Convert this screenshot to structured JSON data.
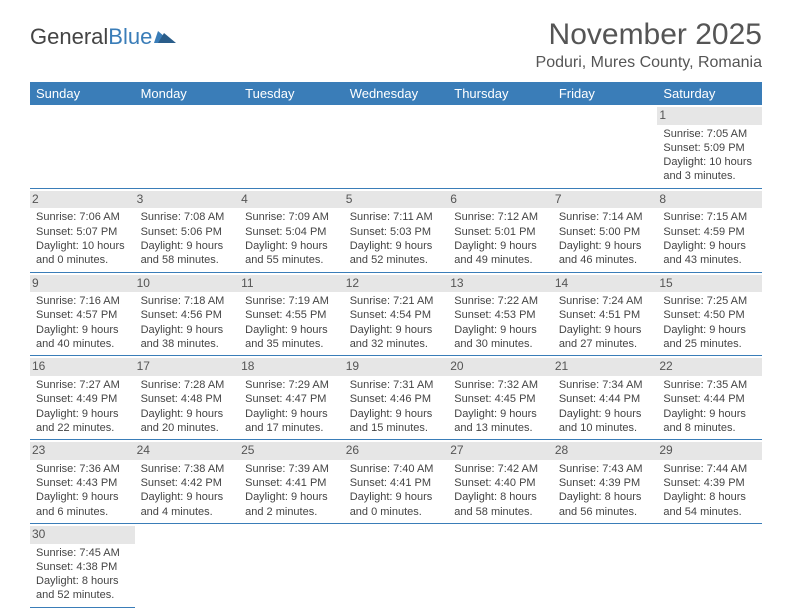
{
  "logo": {
    "general": "General",
    "blue": "Blue"
  },
  "title": "November 2025",
  "location": "Poduri, Mures County, Romania",
  "colors": {
    "header_bg": "#3a7db8",
    "header_text": "#ffffff",
    "daynum_bg": "#e6e6e6",
    "border": "#3a7db8",
    "text": "#444444",
    "logo_blue": "#3a7db8"
  },
  "weekdays": [
    "Sunday",
    "Monday",
    "Tuesday",
    "Wednesday",
    "Thursday",
    "Friday",
    "Saturday"
  ],
  "weeks": [
    [
      null,
      null,
      null,
      null,
      null,
      null,
      {
        "n": "1",
        "sunrise": "Sunrise: 7:05 AM",
        "sunset": "Sunset: 5:09 PM",
        "day1": "Daylight: 10 hours",
        "day2": "and 3 minutes."
      }
    ],
    [
      {
        "n": "2",
        "sunrise": "Sunrise: 7:06 AM",
        "sunset": "Sunset: 5:07 PM",
        "day1": "Daylight: 10 hours",
        "day2": "and 0 minutes."
      },
      {
        "n": "3",
        "sunrise": "Sunrise: 7:08 AM",
        "sunset": "Sunset: 5:06 PM",
        "day1": "Daylight: 9 hours",
        "day2": "and 58 minutes."
      },
      {
        "n": "4",
        "sunrise": "Sunrise: 7:09 AM",
        "sunset": "Sunset: 5:04 PM",
        "day1": "Daylight: 9 hours",
        "day2": "and 55 minutes."
      },
      {
        "n": "5",
        "sunrise": "Sunrise: 7:11 AM",
        "sunset": "Sunset: 5:03 PM",
        "day1": "Daylight: 9 hours",
        "day2": "and 52 minutes."
      },
      {
        "n": "6",
        "sunrise": "Sunrise: 7:12 AM",
        "sunset": "Sunset: 5:01 PM",
        "day1": "Daylight: 9 hours",
        "day2": "and 49 minutes."
      },
      {
        "n": "7",
        "sunrise": "Sunrise: 7:14 AM",
        "sunset": "Sunset: 5:00 PM",
        "day1": "Daylight: 9 hours",
        "day2": "and 46 minutes."
      },
      {
        "n": "8",
        "sunrise": "Sunrise: 7:15 AM",
        "sunset": "Sunset: 4:59 PM",
        "day1": "Daylight: 9 hours",
        "day2": "and 43 minutes."
      }
    ],
    [
      {
        "n": "9",
        "sunrise": "Sunrise: 7:16 AM",
        "sunset": "Sunset: 4:57 PM",
        "day1": "Daylight: 9 hours",
        "day2": "and 40 minutes."
      },
      {
        "n": "10",
        "sunrise": "Sunrise: 7:18 AM",
        "sunset": "Sunset: 4:56 PM",
        "day1": "Daylight: 9 hours",
        "day2": "and 38 minutes."
      },
      {
        "n": "11",
        "sunrise": "Sunrise: 7:19 AM",
        "sunset": "Sunset: 4:55 PM",
        "day1": "Daylight: 9 hours",
        "day2": "and 35 minutes."
      },
      {
        "n": "12",
        "sunrise": "Sunrise: 7:21 AM",
        "sunset": "Sunset: 4:54 PM",
        "day1": "Daylight: 9 hours",
        "day2": "and 32 minutes."
      },
      {
        "n": "13",
        "sunrise": "Sunrise: 7:22 AM",
        "sunset": "Sunset: 4:53 PM",
        "day1": "Daylight: 9 hours",
        "day2": "and 30 minutes."
      },
      {
        "n": "14",
        "sunrise": "Sunrise: 7:24 AM",
        "sunset": "Sunset: 4:51 PM",
        "day1": "Daylight: 9 hours",
        "day2": "and 27 minutes."
      },
      {
        "n": "15",
        "sunrise": "Sunrise: 7:25 AM",
        "sunset": "Sunset: 4:50 PM",
        "day1": "Daylight: 9 hours",
        "day2": "and 25 minutes."
      }
    ],
    [
      {
        "n": "16",
        "sunrise": "Sunrise: 7:27 AM",
        "sunset": "Sunset: 4:49 PM",
        "day1": "Daylight: 9 hours",
        "day2": "and 22 minutes."
      },
      {
        "n": "17",
        "sunrise": "Sunrise: 7:28 AM",
        "sunset": "Sunset: 4:48 PM",
        "day1": "Daylight: 9 hours",
        "day2": "and 20 minutes."
      },
      {
        "n": "18",
        "sunrise": "Sunrise: 7:29 AM",
        "sunset": "Sunset: 4:47 PM",
        "day1": "Daylight: 9 hours",
        "day2": "and 17 minutes."
      },
      {
        "n": "19",
        "sunrise": "Sunrise: 7:31 AM",
        "sunset": "Sunset: 4:46 PM",
        "day1": "Daylight: 9 hours",
        "day2": "and 15 minutes."
      },
      {
        "n": "20",
        "sunrise": "Sunrise: 7:32 AM",
        "sunset": "Sunset: 4:45 PM",
        "day1": "Daylight: 9 hours",
        "day2": "and 13 minutes."
      },
      {
        "n": "21",
        "sunrise": "Sunrise: 7:34 AM",
        "sunset": "Sunset: 4:44 PM",
        "day1": "Daylight: 9 hours",
        "day2": "and 10 minutes."
      },
      {
        "n": "22",
        "sunrise": "Sunrise: 7:35 AM",
        "sunset": "Sunset: 4:44 PM",
        "day1": "Daylight: 9 hours",
        "day2": "and 8 minutes."
      }
    ],
    [
      {
        "n": "23",
        "sunrise": "Sunrise: 7:36 AM",
        "sunset": "Sunset: 4:43 PM",
        "day1": "Daylight: 9 hours",
        "day2": "and 6 minutes."
      },
      {
        "n": "24",
        "sunrise": "Sunrise: 7:38 AM",
        "sunset": "Sunset: 4:42 PM",
        "day1": "Daylight: 9 hours",
        "day2": "and 4 minutes."
      },
      {
        "n": "25",
        "sunrise": "Sunrise: 7:39 AM",
        "sunset": "Sunset: 4:41 PM",
        "day1": "Daylight: 9 hours",
        "day2": "and 2 minutes."
      },
      {
        "n": "26",
        "sunrise": "Sunrise: 7:40 AM",
        "sunset": "Sunset: 4:41 PM",
        "day1": "Daylight: 9 hours",
        "day2": "and 0 minutes."
      },
      {
        "n": "27",
        "sunrise": "Sunrise: 7:42 AM",
        "sunset": "Sunset: 4:40 PM",
        "day1": "Daylight: 8 hours",
        "day2": "and 58 minutes."
      },
      {
        "n": "28",
        "sunrise": "Sunrise: 7:43 AM",
        "sunset": "Sunset: 4:39 PM",
        "day1": "Daylight: 8 hours",
        "day2": "and 56 minutes."
      },
      {
        "n": "29",
        "sunrise": "Sunrise: 7:44 AM",
        "sunset": "Sunset: 4:39 PM",
        "day1": "Daylight: 8 hours",
        "day2": "and 54 minutes."
      }
    ],
    [
      {
        "n": "30",
        "sunrise": "Sunrise: 7:45 AM",
        "sunset": "Sunset: 4:38 PM",
        "day1": "Daylight: 8 hours",
        "day2": "and 52 minutes."
      },
      null,
      null,
      null,
      null,
      null,
      null
    ]
  ]
}
